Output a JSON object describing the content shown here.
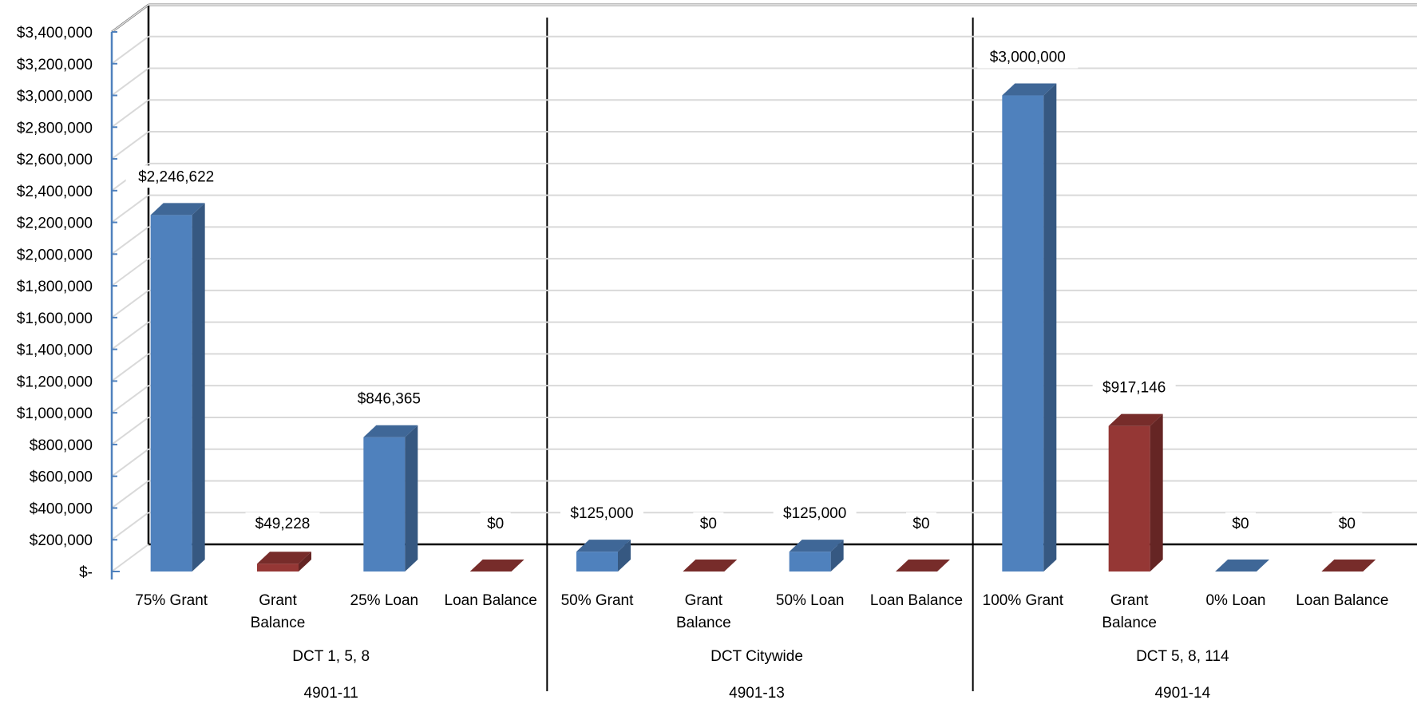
{
  "chart_data": {
    "type": "bar",
    "title": "",
    "xlabel": "",
    "ylabel": "",
    "ylim": [
      0,
      3400000
    ],
    "ytick_step": 200000,
    "ytick_labels": [
      "$-",
      "$200,000",
      "$400,000",
      "$600,000",
      "$800,000",
      "$1,000,000",
      "$1,200,000",
      "$1,400,000",
      "$1,600,000",
      "$1,800,000",
      "$2,000,000",
      "$2,200,000",
      "$2,400,000",
      "$2,600,000",
      "$2,800,000",
      "$3,000,000",
      "$3,200,000",
      "$3,400,000"
    ],
    "grid": true,
    "legend": "none",
    "style": "3d-column",
    "colors": {
      "grant_amount": "#4f81bd",
      "balance": "#953735",
      "loan_amount": "#4f81bd"
    },
    "groups": [
      {
        "code": "4901-11",
        "district": "DCT 1, 5, 8",
        "categories": [
          {
            "label": [
              "75% Grant"
            ],
            "value": 2246622,
            "data_label": "$2,246,622",
            "kind": "amount"
          },
          {
            "label": [
              "Grant",
              "Balance"
            ],
            "value": 49228,
            "data_label": "$49,228",
            "kind": "balance"
          },
          {
            "label": [
              "25% Loan"
            ],
            "value": 846365,
            "data_label": "$846,365",
            "kind": "amount"
          },
          {
            "label": [
              "Loan Balance"
            ],
            "value": 0,
            "data_label": "$0",
            "kind": "balance"
          }
        ]
      },
      {
        "code": "4901-13",
        "district": "DCT Citywide",
        "categories": [
          {
            "label": [
              "50% Grant"
            ],
            "value": 125000,
            "data_label": "$125,000",
            "kind": "amount"
          },
          {
            "label": [
              "Grant",
              "Balance"
            ],
            "value": 0,
            "data_label": "$0",
            "kind": "balance"
          },
          {
            "label": [
              "50% Loan"
            ],
            "value": 125000,
            "data_label": "$125,000",
            "kind": "amount"
          },
          {
            "label": [
              "Loan Balance"
            ],
            "value": 0,
            "data_label": "$0",
            "kind": "balance"
          }
        ]
      },
      {
        "code": "4901-14",
        "district": "DCT 5, 8, 114",
        "categories": [
          {
            "label": [
              "100% Grant"
            ],
            "value": 3000000,
            "data_label": "$3,000,000",
            "kind": "amount"
          },
          {
            "label": [
              "Grant",
              "Balance"
            ],
            "value": 917146,
            "data_label": "$917,146",
            "kind": "balance"
          },
          {
            "label": [
              "0% Loan"
            ],
            "value": 0,
            "data_label": "$0",
            "kind": "amount"
          },
          {
            "label": [
              "Loan Balance"
            ],
            "value": 0,
            "data_label": "$0",
            "kind": "balance"
          }
        ]
      }
    ]
  }
}
